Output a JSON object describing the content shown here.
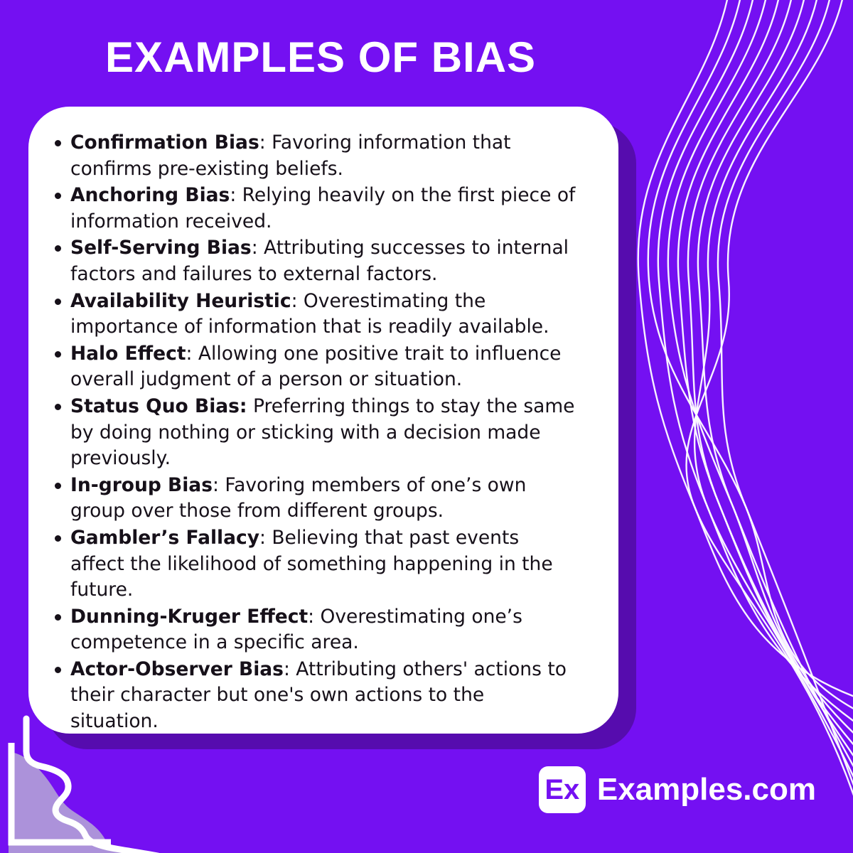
{
  "page": {
    "title": "EXAMPLES OF BIAS"
  },
  "colors": {
    "bg": "#7410F2",
    "card_shadow": "#560CAE",
    "card_bg": "#FFFFFF",
    "text": "#161019",
    "lavender": "#AC92DA",
    "accent": "#7410F2"
  },
  "bias_list": {
    "items": [
      {
        "term": "Confirmation Bias",
        "rest": ": Favoring information that confirms pre-existing beliefs."
      },
      {
        "term": "Anchoring Bias",
        "rest": ": Relying heavily on the first piece of information received."
      },
      {
        "term": "Self-Serving Bias",
        "rest": ": Attributing successes to internal factors and failures to external factors."
      },
      {
        "term": "Availability Heuristic",
        "rest": ": Overestimating the importance of information that is readily available."
      },
      {
        "term": "Halo Effect",
        "rest": ": Allowing one positive trait to influence overall judgment of a person or situation."
      },
      {
        "term": "Status Quo Bias:",
        "rest": " Preferring things to stay the same by doing nothing or sticking with a decision made previously."
      },
      {
        "term": "In-group Bias",
        "rest": ": Favoring members of one’s own group over those from different groups."
      },
      {
        "term": "Gambler’s Fallacy",
        "rest": ": Believing that past events affect the likelihood of something happening in the future."
      },
      {
        "term": "Dunning-Kruger Effect",
        "rest": ": Overestimating one’s competence in a specific area."
      },
      {
        "term": "Actor-Observer Bias",
        "rest": ": Attributing others' actions to their character but one's own actions to the situation."
      }
    ]
  },
  "footer": {
    "logo_badge": "Ex",
    "logo_text": "Examples.com"
  }
}
